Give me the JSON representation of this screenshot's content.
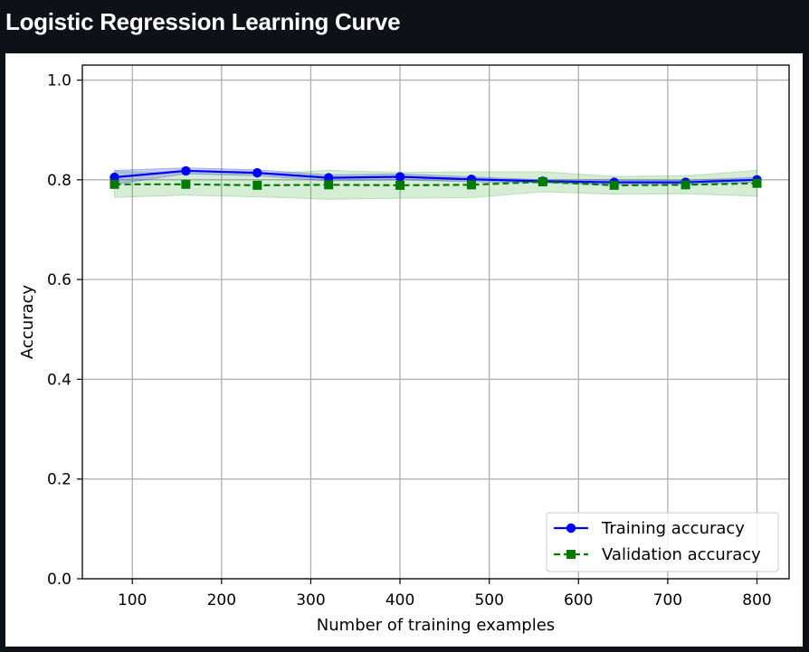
{
  "app": {
    "title": "Logistic Regression Learning Curve"
  },
  "chart_data": {
    "type": "line",
    "title": "",
    "xlabel": "Number of training examples",
    "ylabel": "Accuracy",
    "xlim": [
      44,
      836
    ],
    "ylim": [
      0.0,
      1.03
    ],
    "xticks": [
      100,
      200,
      300,
      400,
      500,
      600,
      700,
      800
    ],
    "yticks": [
      0.0,
      0.2,
      0.4,
      0.6,
      0.8,
      1.0
    ],
    "ytick_labels": [
      "0.0",
      "0.2",
      "0.4",
      "0.6",
      "0.8",
      "1.0"
    ],
    "grid": true,
    "legend_position": "lower-right",
    "x": [
      80,
      160,
      240,
      320,
      400,
      480,
      560,
      640,
      720,
      800
    ],
    "series": [
      {
        "name": "Training accuracy",
        "color": "#0000ff",
        "marker": "circle",
        "linestyle": "solid",
        "values": [
          0.805,
          0.818,
          0.814,
          0.804,
          0.806,
          0.801,
          0.797,
          0.795,
          0.795,
          0.8
        ],
        "band_lower": [
          0.791,
          0.812,
          0.808,
          0.798,
          0.8,
          0.796,
          0.794,
          0.79,
          0.791,
          0.795
        ],
        "band_upper": [
          0.819,
          0.824,
          0.82,
          0.81,
          0.812,
          0.806,
          0.8,
          0.8,
          0.799,
          0.805
        ],
        "band_color": "#0000ff"
      },
      {
        "name": "Validation accuracy",
        "color": "#007a00",
        "marker": "square",
        "linestyle": "dashed",
        "values": [
          0.791,
          0.791,
          0.789,
          0.79,
          0.789,
          0.79,
          0.796,
          0.789,
          0.79,
          0.793
        ],
        "band_lower": [
          0.765,
          0.769,
          0.766,
          0.761,
          0.763,
          0.764,
          0.776,
          0.771,
          0.772,
          0.767
        ],
        "band_upper": [
          0.817,
          0.813,
          0.812,
          0.819,
          0.815,
          0.816,
          0.816,
          0.807,
          0.808,
          0.819
        ],
        "band_color": "#2ca02c"
      }
    ]
  }
}
